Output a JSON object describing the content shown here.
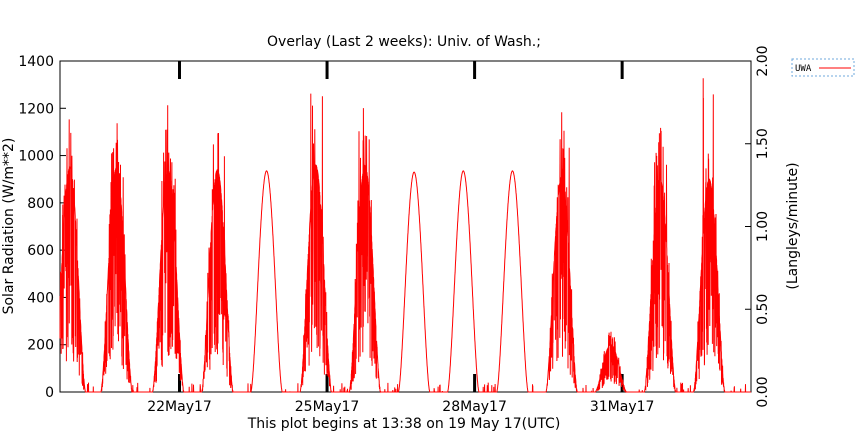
{
  "chart_data": {
    "type": "line",
    "title": "Overlay (Last 2 weeks): Univ. of Wash.;",
    "xlabel": "This plot begins at 13:38 on 19 May 17(UTC)",
    "ylabel": "Solar Radiation (W/m**2)",
    "y2label": "(Langleys/minute)",
    "x_range_days": [
      0,
      14.05
    ],
    "ylim": [
      0,
      1400
    ],
    "y2lim": [
      0.0,
      2.0
    ],
    "yticks": [
      "0",
      "200",
      "400",
      "600",
      "800",
      "1000",
      "1200",
      "1400"
    ],
    "y2ticks": [
      "0.00",
      "0.50",
      "1.00",
      "1.50",
      "2.00"
    ],
    "x_tick_labels": [
      {
        "label": "22May17",
        "day": 2.43
      },
      {
        "label": "25May17",
        "day": 5.43
      },
      {
        "label": "28May17",
        "day": 8.43
      },
      {
        "label": "31May17",
        "day": 11.43
      }
    ],
    "grid": false,
    "legend_position": "outside-top-right",
    "series": [
      {
        "name": "UWA",
        "color": "#ff0000",
        "daily_peaks": [
          {
            "day": 0.2,
            "peak": 1040,
            "clear": 950,
            "cloudy": true
          },
          {
            "day": 1.15,
            "peak": 1005,
            "clear": 950,
            "cloudy": true
          },
          {
            "day": 2.2,
            "peak": 950,
            "clear": 940,
            "cloudy": true
          },
          {
            "day": 3.2,
            "peak": 1075,
            "clear": 940,
            "cloudy": true
          },
          {
            "day": 4.2,
            "peak": 940,
            "clear": 935,
            "cloudy": false
          },
          {
            "day": 5.2,
            "peak": 1270,
            "clear": 960,
            "cloudy": true
          },
          {
            "day": 6.2,
            "peak": 1120,
            "clear": 960,
            "cloudy": true
          },
          {
            "day": 7.2,
            "peak": 930,
            "clear": 930,
            "cloudy": false
          },
          {
            "day": 8.2,
            "peak": 935,
            "clear": 935,
            "cloudy": false
          },
          {
            "day": 9.2,
            "peak": 935,
            "clear": 935,
            "cloudy": false
          },
          {
            "day": 10.2,
            "peak": 1040,
            "clear": 910,
            "cloudy": true
          },
          {
            "day": 11.2,
            "peak": 420,
            "clear": 200,
            "cloudy": true
          },
          {
            "day": 12.2,
            "peak": 985,
            "clear": 900,
            "cloudy": true
          },
          {
            "day": 13.2,
            "peak": 1330,
            "clear": 900,
            "cloudy": true
          }
        ]
      }
    ]
  }
}
